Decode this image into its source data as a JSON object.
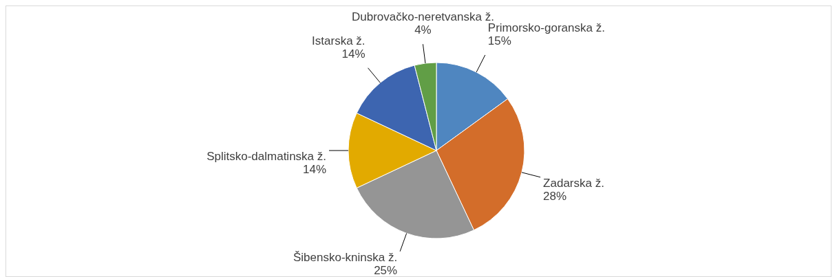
{
  "chart_data": {
    "type": "pie",
    "categories": [
      "Primorsko-goranska ž.",
      "Zadarska ž.",
      "Šibensko-kninska ž.",
      "Splitsko-dalmatinska ž.",
      "Istarska ž.",
      "Dubrovačko-neretvanska ž."
    ],
    "values": [
      15,
      28,
      25,
      14,
      14,
      4
    ],
    "value_labels": [
      "15%",
      "28%",
      "25%",
      "14%",
      "14%",
      "4%"
    ],
    "colors": [
      "#4f86c0",
      "#d36d2a",
      "#959595",
      "#e2aa00",
      "#3d65b0",
      "#619e46"
    ],
    "legend": false
  }
}
